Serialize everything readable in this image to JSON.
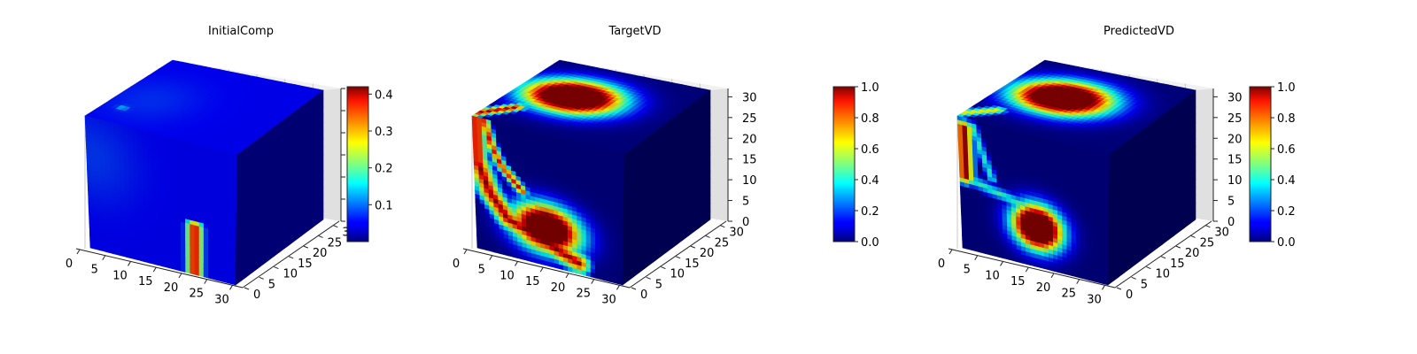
{
  "figure": {
    "panels": [
      {
        "id": "initial",
        "title": "InitialComp",
        "colorbar": {
          "min": 0.0,
          "max": 0.42,
          "ticks": [
            0.1,
            0.2,
            0.3,
            0.4
          ],
          "tick_labels": [
            "0.1",
            "0.2",
            "0.3",
            "0.4"
          ]
        }
      },
      {
        "id": "target",
        "title": "TargetVD",
        "colorbar": {
          "min": 0.0,
          "max": 1.0,
          "ticks": [
            0.0,
            0.2,
            0.4,
            0.6,
            0.8,
            1.0
          ],
          "tick_labels": [
            "0.0",
            "0.2",
            "0.4",
            "0.6",
            "0.8",
            "1.0"
          ]
        }
      },
      {
        "id": "predicted",
        "title": "PredictedVD",
        "colorbar": {
          "min": 0.0,
          "max": 1.0,
          "ticks": [
            0.0,
            0.2,
            0.4,
            0.6,
            0.8,
            1.0
          ],
          "tick_labels": [
            "0.0",
            "0.2",
            "0.4",
            "0.6",
            "0.8",
            "1.0"
          ]
        }
      }
    ],
    "colormap": "jet"
  },
  "chart_data": [
    {
      "type": "heatmap",
      "title": "InitialComp",
      "xlabel": "",
      "ylabel": "",
      "zlabel": "",
      "x_ticks": [
        0,
        5,
        10,
        15,
        20,
        25,
        30
      ],
      "y_ticks": [
        0,
        5,
        10,
        15,
        20,
        25,
        30
      ],
      "z_ticks": [],
      "grid": 32,
      "value_range": [
        0.0,
        0.42
      ],
      "colormap": "jet",
      "features": [
        {
          "face": "front",
          "shape": "vertical bar",
          "x_range": [
            21,
            25
          ],
          "z_range": [
            0,
            10
          ],
          "value": 0.4
        },
        {
          "face": "front+top",
          "shape": "diffuse region",
          "value": 0.05
        }
      ]
    },
    {
      "type": "heatmap",
      "title": "TargetVD",
      "xlabel": "",
      "ylabel": "",
      "zlabel": "",
      "x_ticks": [
        0,
        5,
        10,
        15,
        20,
        25,
        30
      ],
      "y_ticks": [
        0,
        5,
        10,
        15,
        20,
        25,
        30
      ],
      "z_ticks": [
        0,
        5,
        10,
        15,
        20,
        25,
        30
      ],
      "grid": 32,
      "value_range": [
        0.0,
        1.0
      ],
      "colormap": "jet",
      "features": [
        {
          "face": "top",
          "shape": "blob",
          "value": 1.0
        },
        {
          "face": "front",
          "shape": "left column",
          "x_range": [
            0,
            3
          ],
          "z_range": [
            18,
            32
          ],
          "value": 1.0
        },
        {
          "face": "front",
          "shape": "diagonal band",
          "value": 0.9
        },
        {
          "face": "front",
          "shape": "large lobe",
          "x_range": [
            7,
            25
          ],
          "z_range": [
            0,
            14
          ],
          "value": 1.0
        }
      ]
    },
    {
      "type": "heatmap",
      "title": "PredictedVD",
      "xlabel": "",
      "ylabel": "",
      "zlabel": "",
      "x_ticks": [
        0,
        5,
        10,
        15,
        20,
        25,
        30
      ],
      "y_ticks": [
        0,
        5,
        10,
        15,
        20,
        25,
        30
      ],
      "z_ticks": [
        0,
        5,
        10,
        15,
        20,
        25,
        30
      ],
      "grid": 32,
      "value_range": [
        0.0,
        1.0
      ],
      "colormap": "jet",
      "features": [
        {
          "face": "top",
          "shape": "blob",
          "value": 1.0
        },
        {
          "face": "front",
          "shape": "left column",
          "x_range": [
            0,
            4
          ],
          "z_range": [
            14,
            30
          ],
          "value": 1.0
        },
        {
          "face": "front",
          "shape": "connecting band",
          "value": 0.4
        },
        {
          "face": "front",
          "shape": "oval lobe",
          "x_range": [
            11,
            22
          ],
          "z_range": [
            2,
            14
          ],
          "value": 1.0
        }
      ]
    }
  ]
}
